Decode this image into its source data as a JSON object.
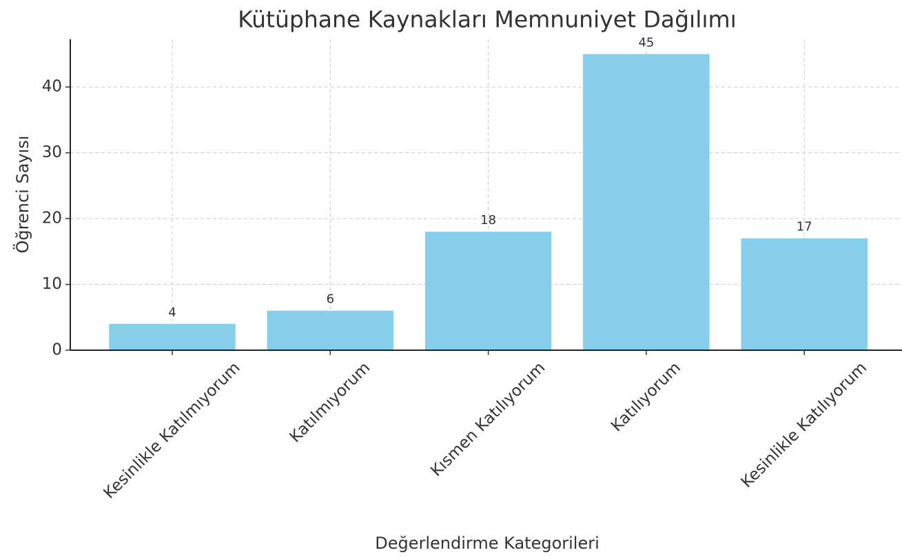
{
  "chart_data": {
    "type": "bar",
    "title": "Kütüphane Kaynakları Memnuniyet Dağılımı",
    "xlabel": "Değerlendirme Kategorileri",
    "ylabel": "Öğrenci Sayısı",
    "categories": [
      "Kesinlikle Katılmıyorum",
      "Katılmıyorum",
      "Kısmen Katılıyorum",
      "Katılıyorum",
      "Kesinlikle Katılıyorum"
    ],
    "values": [
      4,
      6,
      18,
      45,
      17
    ],
    "color": "#87ceeb",
    "ylim": [
      0,
      47.25
    ],
    "yticks": [
      0,
      10,
      20,
      30,
      40
    ],
    "grid": true
  }
}
